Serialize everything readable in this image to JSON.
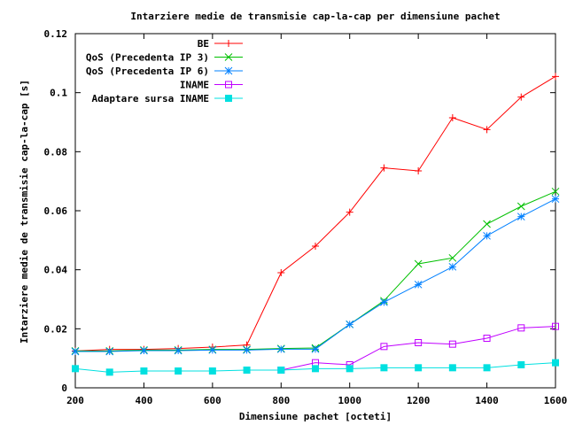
{
  "chart_data": {
    "type": "line",
    "title": "Intarziere medie de transmisie cap-la-cap per dimensiune pachet",
    "xlabel": "Dimensiune pachet [octeti]",
    "ylabel": "Intarziere medie de transmisie cap-la-cap [s]",
    "xlim": [
      200,
      1600
    ],
    "ylim": [
      0,
      0.12
    ],
    "xticks": [
      200,
      400,
      600,
      800,
      1000,
      1200,
      1400,
      1600
    ],
    "yticks": [
      0,
      0.02,
      0.04,
      0.06,
      0.08,
      0.1,
      0.12
    ],
    "ytick_labels": [
      "0",
      "0.02",
      "0.04",
      "0.06",
      "0.08",
      "0.1",
      "0.12"
    ],
    "grid": false,
    "legend_position": "top-left",
    "x": [
      200,
      300,
      400,
      500,
      600,
      700,
      800,
      900,
      1000,
      1100,
      1200,
      1300,
      1400,
      1500,
      1600
    ],
    "series": [
      {
        "name": "BE",
        "color": "#ff0000",
        "marker": "plus",
        "values": [
          0.0125,
          0.013,
          0.013,
          0.0133,
          0.0138,
          0.0145,
          0.039,
          0.048,
          0.0595,
          0.0745,
          0.0735,
          0.0915,
          0.0875,
          0.0985,
          0.1055
        ]
      },
      {
        "name": "QoS (Precedenta IP 3)",
        "color": "#00c000",
        "marker": "x",
        "values": [
          0.0125,
          0.0125,
          0.0128,
          0.0128,
          0.013,
          0.013,
          0.0133,
          0.0135,
          0.0215,
          0.0295,
          0.042,
          0.044,
          0.0555,
          0.0615,
          0.0665
        ]
      },
      {
        "name": "QoS (Precedenta IP 6)",
        "color": "#0080ff",
        "marker": "star",
        "values": [
          0.0123,
          0.0123,
          0.0126,
          0.0126,
          0.0128,
          0.0128,
          0.0131,
          0.0131,
          0.0215,
          0.029,
          0.035,
          0.041,
          0.0515,
          0.058,
          0.064
        ]
      },
      {
        "name": "INAME",
        "color": "#c000ff",
        "marker": "square",
        "values": [
          null,
          null,
          null,
          null,
          null,
          null,
          0.006,
          0.0085,
          0.0078,
          0.014,
          0.0153,
          0.0148,
          0.0168,
          0.0203,
          0.0208
        ]
      },
      {
        "name": "Adaptare sursa INAME",
        "color": "#00e0e0",
        "marker": "filled-square",
        "values": [
          0.0065,
          0.0053,
          0.0057,
          0.0057,
          0.0057,
          0.006,
          0.006,
          0.0065,
          0.0065,
          0.0068,
          0.0068,
          0.0068,
          0.0068,
          0.0078,
          0.0085
        ]
      }
    ]
  }
}
